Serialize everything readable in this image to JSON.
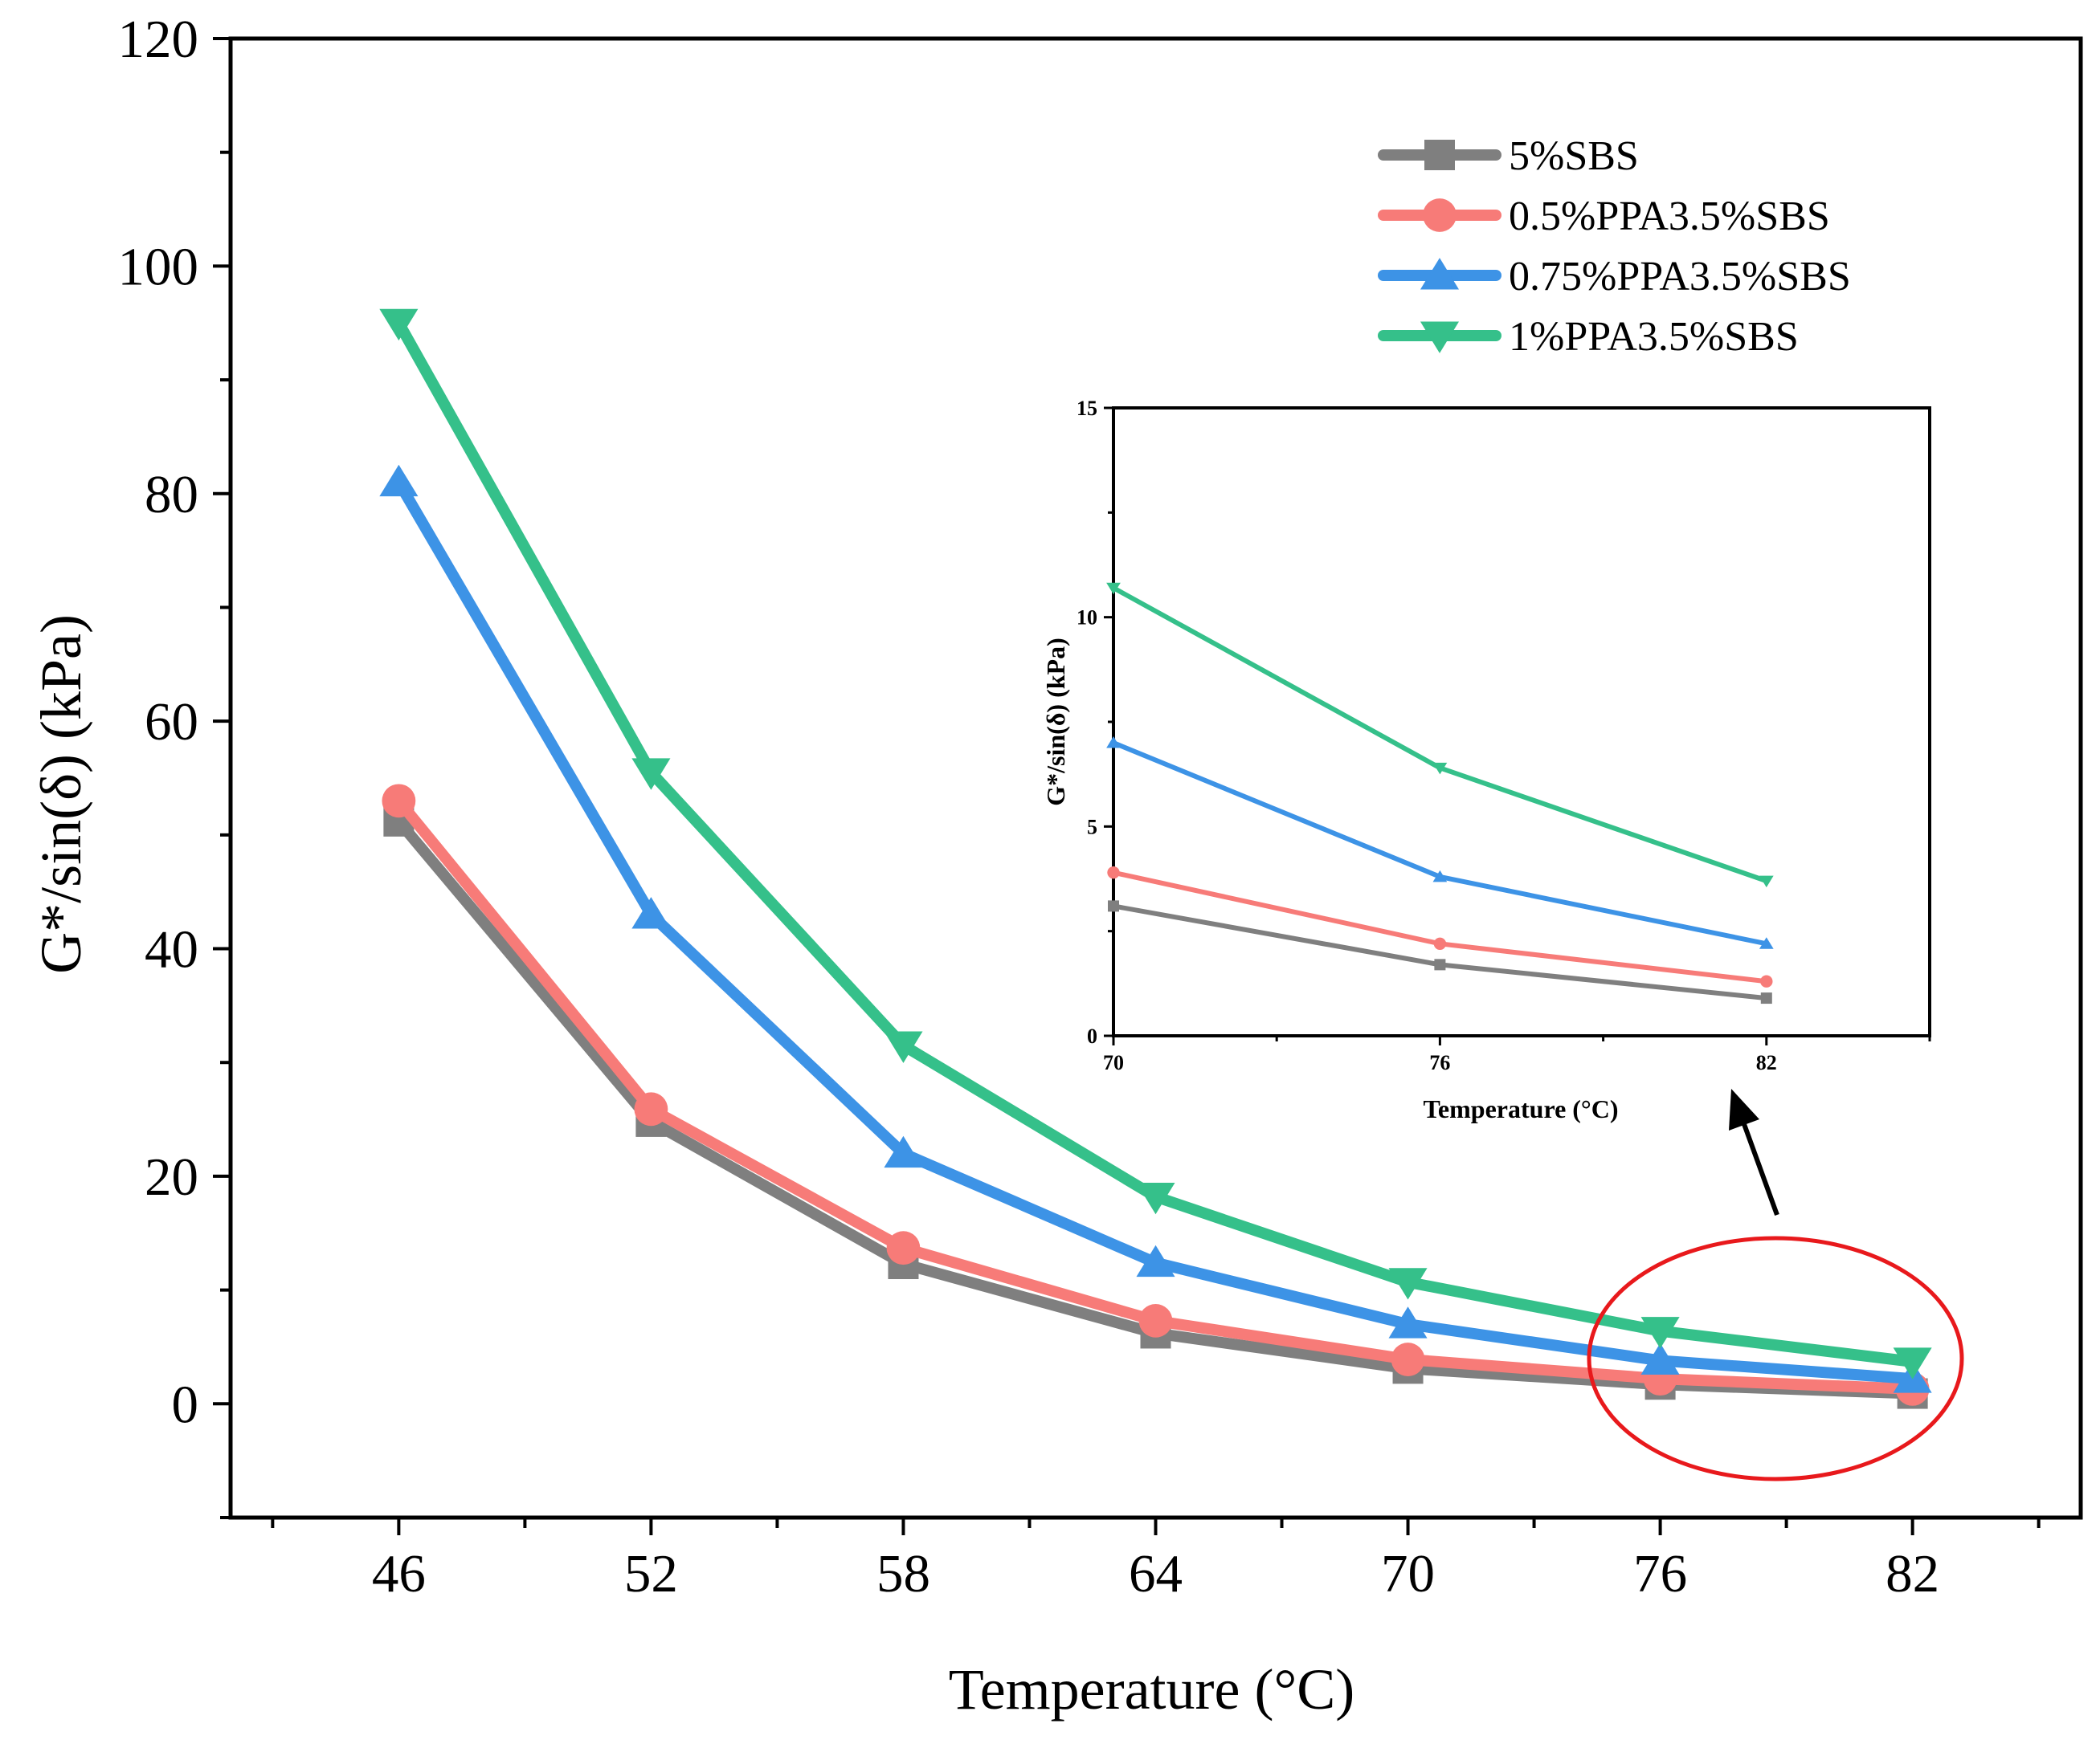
{
  "chart_data": {
    "type": "line",
    "xlabel": "Temperature (°C)",
    "ylabel": "G*/sin(δ) (kPa)",
    "x": [
      46,
      52,
      58,
      64,
      70,
      76,
      82
    ],
    "xlim": [
      42,
      86
    ],
    "ylim": [
      -10,
      120
    ],
    "yticks": [
      0,
      20,
      40,
      60,
      80,
      100,
      120
    ],
    "legend_position": "top-right",
    "series": [
      {
        "name": "5%SBS",
        "marker": "square",
        "color": "#7f7f7f",
        "values": [
          51.2,
          24.8,
          12.3,
          6.2,
          3.1,
          1.7,
          0.9
        ]
      },
      {
        "name": "0.5%PPA3.5%SBS",
        "marker": "circle",
        "color": "#f77b78",
        "values": [
          53.0,
          25.9,
          13.7,
          7.3,
          3.9,
          2.2,
          1.3
        ]
      },
      {
        "name": "0.75%PPA3.5%SBS",
        "marker": "triangle-up",
        "color": "#3d93e6",
        "values": [
          81.0,
          43.0,
          22.0,
          12.4,
          7.0,
          3.8,
          2.2
        ]
      },
      {
        "name": "1%PPA3.5%SBS",
        "marker": "triangle-down",
        "color": "#35c08a",
        "values": [
          95.0,
          55.5,
          31.5,
          18.2,
          10.7,
          6.4,
          3.7
        ]
      }
    ],
    "inset": {
      "xlabel": "Temperature (°C)",
      "ylabel": "G*/sin(δ) (kPa)",
      "x": [
        70,
        76,
        82
      ],
      "xlim": [
        70,
        85
      ],
      "ylim": [
        0,
        15
      ],
      "yticks": [
        0,
        5,
        10,
        15
      ],
      "xticks": [
        70,
        76,
        82
      ],
      "series": [
        {
          "name": "5%SBS",
          "values": [
            3.1,
            1.7,
            0.9
          ]
        },
        {
          "name": "0.5%PPA3.5%SBS",
          "values": [
            3.9,
            2.2,
            1.3
          ]
        },
        {
          "name": "0.75%PPA3.5%SBS",
          "values": [
            7.0,
            3.8,
            2.2
          ]
        },
        {
          "name": "1%PPA3.5%SBS",
          "values": [
            10.7,
            6.4,
            3.7
          ]
        }
      ]
    },
    "annotations": [
      {
        "type": "ellipse",
        "color": "#e8191c",
        "note": "highlight region 76–82 °C"
      },
      {
        "type": "arrow",
        "color": "#000000",
        "note": "points to inset"
      }
    ]
  }
}
